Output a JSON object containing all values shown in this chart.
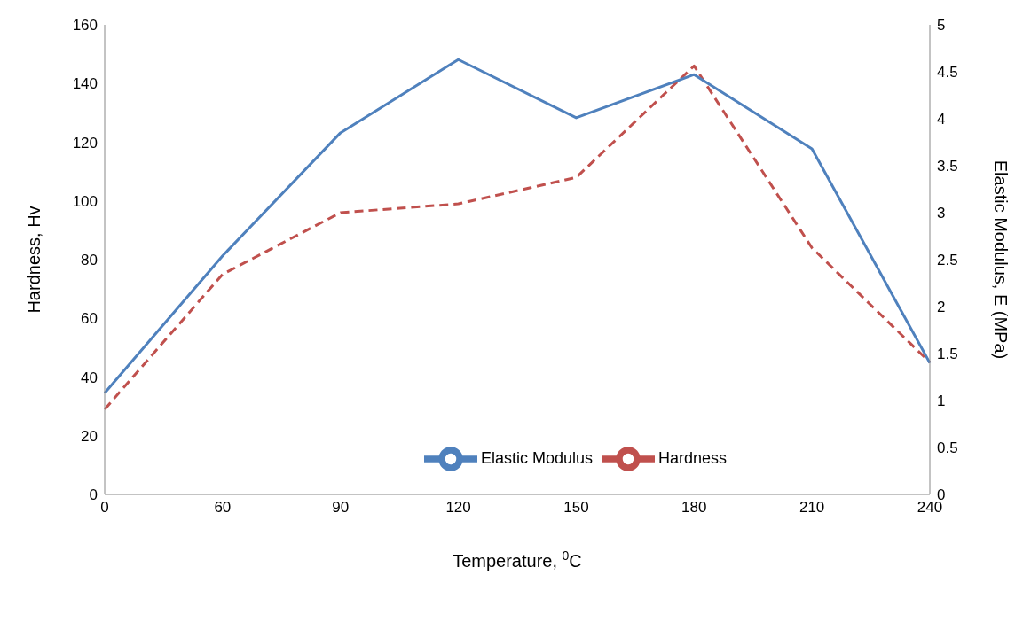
{
  "chart_data": {
    "type": "line",
    "xlabel": "Temperature, $^{0}$C",
    "ylabel": "Hardness, Hv",
    "y2label": "Elastic Modulus, E (MPa)",
    "categories": [
      "0",
      "60",
      "90",
      "120",
      "150",
      "180",
      "210",
      "240"
    ],
    "series": [
      {
        "name": "Hardness",
        "color": "#c0504d",
        "line_style": "dashed",
        "values": [
          29,
          75,
          96,
          99,
          108,
          146,
          84,
          45
        ]
      },
      {
        "name": "Elastic Modulus",
        "color": "#4f81bd",
        "line_style": "solid",
        "axis": "y2",
        "values": [
          1.08,
          2.54,
          3.85,
          4.63,
          4.01,
          4.47,
          3.68,
          1.4
        ]
      }
    ],
    "ylim": [
      0,
      160
    ],
    "yticks": [
      0,
      20,
      40,
      60,
      80,
      100,
      120,
      140,
      160
    ],
    "y2lim": [
      0,
      5
    ],
    "y2ticks": [
      0,
      0.5,
      1,
      1.5,
      2,
      2.5,
      3,
      3.5,
      4,
      4.5,
      5
    ],
    "grid": false,
    "legend": "bottom",
    "marker": "none"
  }
}
